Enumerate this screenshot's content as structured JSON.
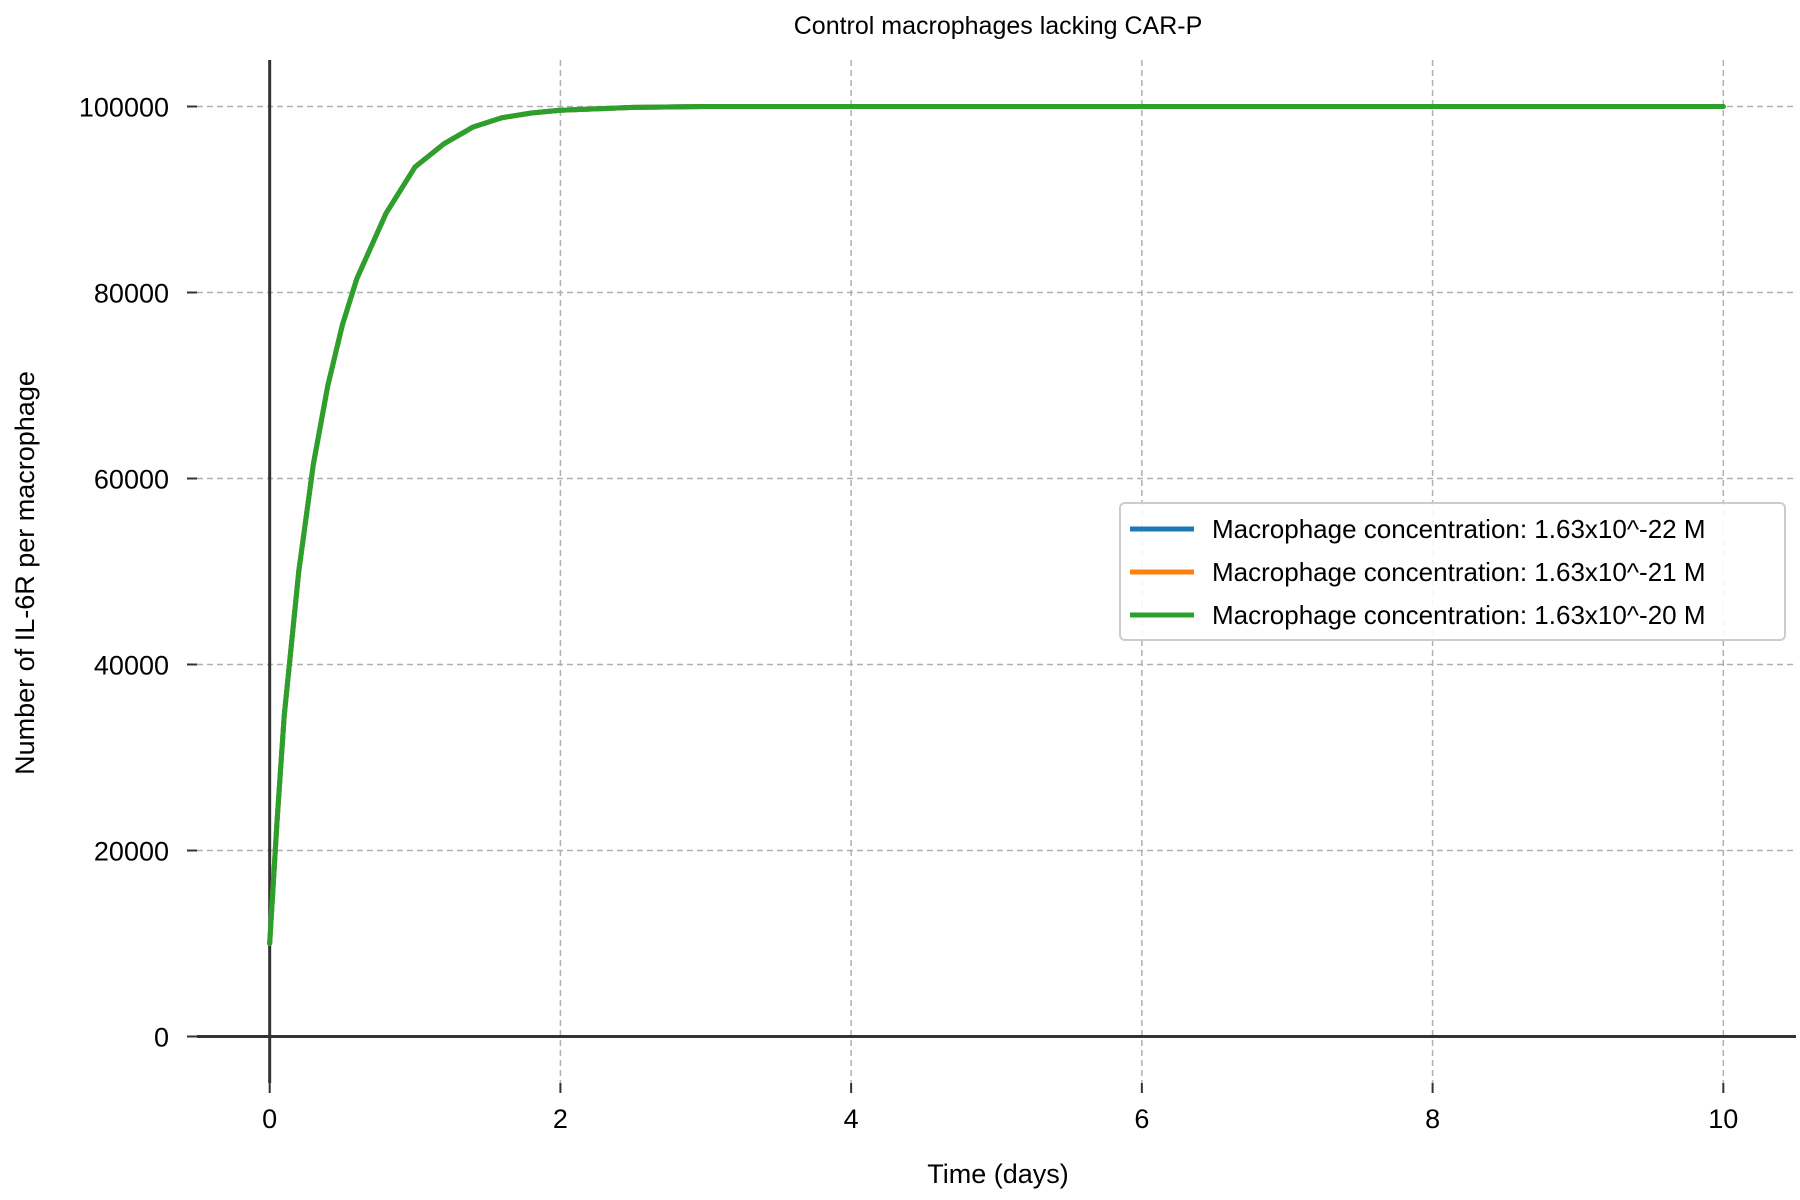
{
  "chart_data": {
    "type": "line",
    "title": "Control macrophages lacking CAR-P",
    "xlabel": "Time (days)",
    "ylabel": "Number of IL-6R per macrophage",
    "xlim": [
      -0.5,
      10.5
    ],
    "ylim": [
      -5000,
      105000
    ],
    "x_ticks": [
      0,
      2,
      4,
      6,
      8,
      10
    ],
    "y_ticks": [
      0,
      20000,
      40000,
      60000,
      80000,
      100000
    ],
    "x_tick_labels": [
      "0",
      "2",
      "4",
      "6",
      "8",
      "10"
    ],
    "y_tick_labels": [
      "0",
      "20000",
      "40000",
      "60000",
      "80000",
      "100000"
    ],
    "grid": true,
    "legend_position": "center-right",
    "x": [
      0,
      0.05,
      0.1,
      0.2,
      0.3,
      0.4,
      0.5,
      0.6,
      0.8,
      1.0,
      1.2,
      1.4,
      1.6,
      1.8,
      2.0,
      2.5,
      3.0,
      4.0,
      5.0,
      6.0,
      7.0,
      8.0,
      9.0,
      10.0
    ],
    "series": [
      {
        "name": "Macrophage concentration: 1.63x10^-22 M",
        "color": "#1f77b4",
        "values": [
          10000,
          23000,
          34500,
          50000,
          61500,
          70000,
          76500,
          81500,
          88500,
          93500,
          96000,
          97800,
          98800,
          99300,
          99600,
          99900,
          100000,
          100000,
          100000,
          100000,
          100000,
          100000,
          100000,
          100000
        ]
      },
      {
        "name": "Macrophage concentration: 1.63x10^-21 M",
        "color": "#ff7f0e",
        "values": [
          10000,
          23000,
          34500,
          50000,
          61500,
          70000,
          76500,
          81500,
          88500,
          93500,
          96000,
          97800,
          98800,
          99300,
          99600,
          99900,
          100000,
          100000,
          100000,
          100000,
          100000,
          100000,
          100000,
          100000
        ]
      },
      {
        "name": "Macrophage concentration: 1.63x10^-20 M",
        "color": "#2ca02c",
        "values": [
          10000,
          23000,
          34500,
          50000,
          61500,
          70000,
          76500,
          81500,
          88500,
          93500,
          96000,
          97800,
          98800,
          99300,
          99600,
          99900,
          100000,
          100000,
          100000,
          100000,
          100000,
          100000,
          100000,
          100000
        ]
      }
    ]
  }
}
